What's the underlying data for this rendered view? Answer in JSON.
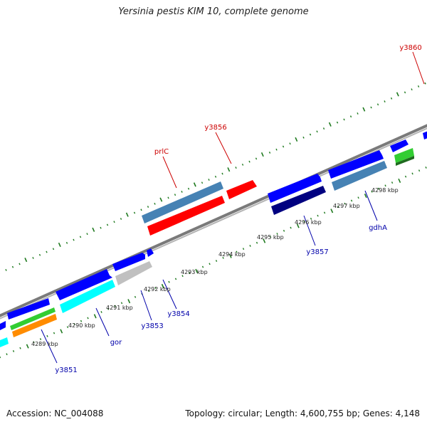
{
  "title": "Yersinia pestis KIM 10, complete genome",
  "footer": {
    "accession": "Accession: NC_004088",
    "summary": "Topology: circular; Length: 4,600,755 bp; Genes: 4,148"
  },
  "colors": {
    "backbone": "#8c8c8c",
    "tick": "#1f7a1f",
    "label_red": "#cc0000",
    "label_blue": "#0000aa",
    "scale_text": "#222222"
  },
  "scale_labels": [
    "4289 kbp",
    "4290 kbp",
    "4291 kbp",
    "4292 kbp",
    "4293 kbp",
    "4294 kbp",
    "4295 kbp",
    "4296 kbp",
    "4297 kbp",
    "4298 kbp"
  ],
  "gene_labels": [
    {
      "text": "y3860",
      "strand": "forward"
    },
    {
      "text": "y3856",
      "strand": "forward"
    },
    {
      "text": "prlC",
      "strand": "forward"
    },
    {
      "text": "gdhA",
      "strand": "reverse"
    },
    {
      "text": "y3857",
      "strand": "reverse"
    },
    {
      "text": "y3854",
      "strand": "reverse"
    },
    {
      "text": "y3853",
      "strand": "reverse"
    },
    {
      "text": "gor",
      "strand": "reverse"
    },
    {
      "text": "y3851",
      "strand": "reverse"
    }
  ],
  "feature_colors": [
    "#0000ff",
    "#4682b4",
    "#ff0000",
    "#00ffff",
    "#c0c0c0",
    "#000080",
    "#32cd32",
    "#ff8c00"
  ]
}
